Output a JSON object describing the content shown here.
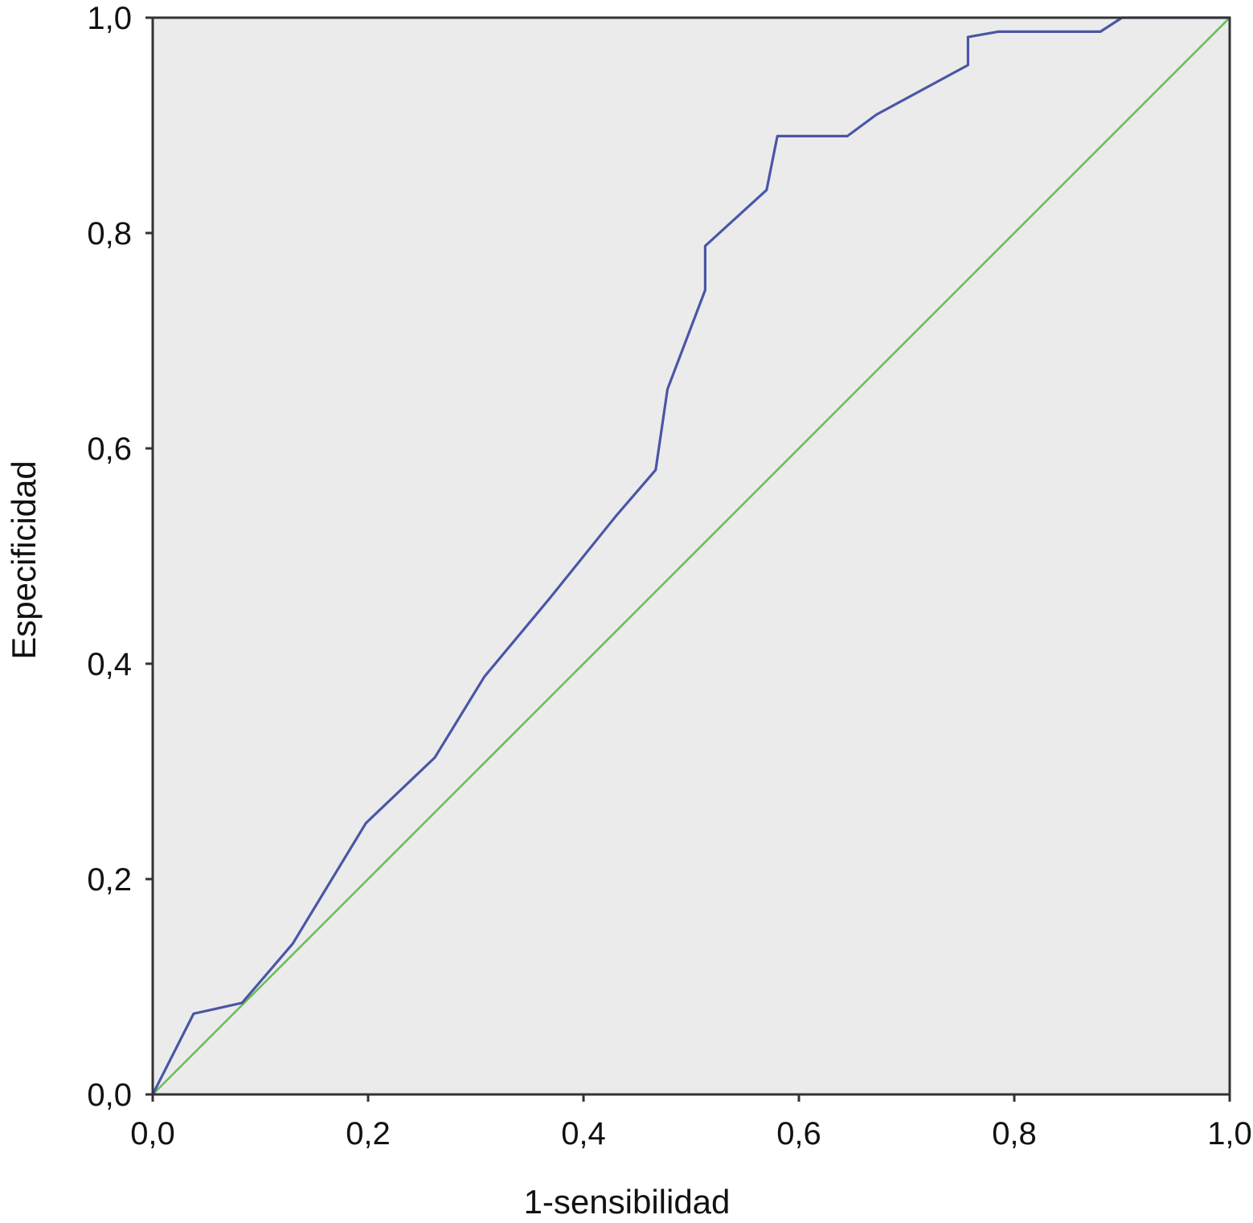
{
  "chart_data": {
    "type": "line",
    "title": "",
    "xlabel": "1-sensibilidad",
    "ylabel": "Especificidad",
    "xlim": [
      0,
      1
    ],
    "ylim": [
      0,
      1
    ],
    "x_ticks": [
      "0,0",
      "0,2",
      "0,4",
      "0,6",
      "0,8",
      "1,0"
    ],
    "y_ticks": [
      "0,0",
      "0,2",
      "0,4",
      "0,6",
      "0,8",
      "1,0"
    ],
    "grid": false,
    "legend": "none",
    "colors": {
      "plot_background": "#ebebeb",
      "roc_curve": "#4a56a6",
      "reference_line": "#6cbf5a",
      "axis": "#333333"
    },
    "series": [
      {
        "x": [
          0,
          0.038,
          0.083,
          0.13,
          0.198,
          0.262,
          0.308,
          0.368,
          0.43,
          0.467,
          0.478,
          0.513,
          0.513,
          0.57,
          0.58,
          0.645,
          0.672,
          0.757,
          0.757,
          0.785,
          0.88,
          0.9,
          1.0
        ],
        "y": [
          0,
          0.075,
          0.085,
          0.14,
          0.252,
          0.313,
          0.388,
          0.46,
          0.537,
          0.58,
          0.655,
          0.747,
          0.788,
          0.84,
          0.89,
          0.89,
          0.91,
          0.956,
          0.982,
          0.987,
          0.987,
          1.0,
          1.0
        ]
      },
      {
        "x": [
          0,
          1
        ],
        "y": [
          0,
          1
        ]
      }
    ]
  }
}
